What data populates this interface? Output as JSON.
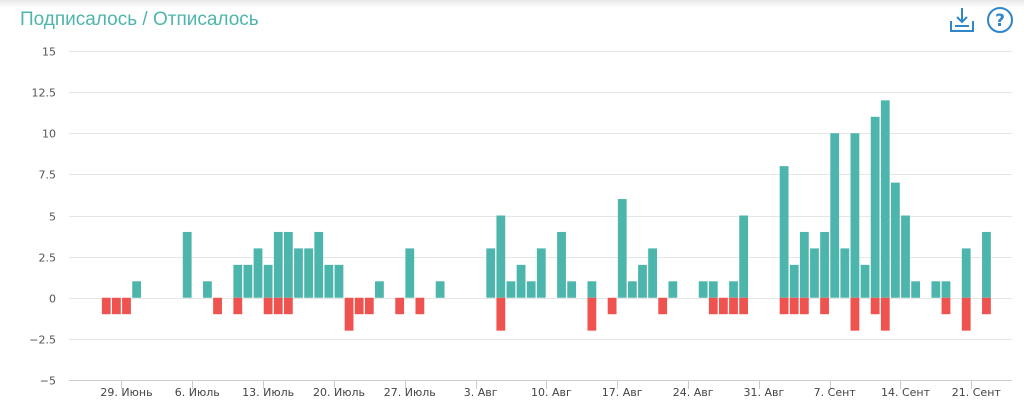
{
  "chart_data": {
    "type": "bar",
    "title": "Подписалось / Отписалось",
    "ylim": [
      -5,
      15
    ],
    "yticks": [
      {
        "v": 15,
        "label": "15"
      },
      {
        "v": 12.5,
        "label": "12.5"
      },
      {
        "v": 10,
        "label": "10"
      },
      {
        "v": 7.5,
        "label": "7.5"
      },
      {
        "v": 5,
        "label": "5"
      },
      {
        "v": 2.5,
        "label": "2.5"
      },
      {
        "v": 0,
        "label": "0"
      },
      {
        "v": -2.5,
        "label": "−2.5"
      },
      {
        "v": -5,
        "label": "−5"
      }
    ],
    "x_range_days": [
      -10,
      83
    ],
    "xticks": [
      {
        "day": 0,
        "label": "29. Июнь"
      },
      {
        "day": 7,
        "label": "6. Июль"
      },
      {
        "day": 14,
        "label": "13. Июль"
      },
      {
        "day": 21,
        "label": "20. Июль"
      },
      {
        "day": 28,
        "label": "27. Июль"
      },
      {
        "day": 35,
        "label": "3. Авг"
      },
      {
        "day": 42,
        "label": "10. Авг"
      },
      {
        "day": 49,
        "label": "17. Авг"
      },
      {
        "day": 56,
        "label": "24. Авг"
      },
      {
        "day": 63,
        "label": "31. Авг"
      },
      {
        "day": 70,
        "label": "7. Сент"
      },
      {
        "day": 77,
        "label": "14. Сент"
      },
      {
        "day": 84,
        "label": "21. Сент"
      }
    ],
    "grid": true,
    "legend": "none",
    "series": [
      {
        "color": "#4db6ac",
        "points": [
          [
            1,
            1
          ],
          [
            6,
            4
          ],
          [
            8,
            1
          ],
          [
            11,
            2
          ],
          [
            12,
            2
          ],
          [
            13,
            3
          ],
          [
            14,
            2
          ],
          [
            15,
            4
          ],
          [
            16,
            4
          ],
          [
            17,
            3
          ],
          [
            18,
            3
          ],
          [
            19,
            4
          ],
          [
            20,
            2
          ],
          [
            21,
            2
          ],
          [
            25,
            1
          ],
          [
            28,
            3
          ],
          [
            31,
            1
          ],
          [
            36,
            3
          ],
          [
            37,
            5
          ],
          [
            38,
            1
          ],
          [
            39,
            2
          ],
          [
            40,
            1
          ],
          [
            41,
            3
          ],
          [
            43,
            4
          ],
          [
            44,
            1
          ],
          [
            46,
            1
          ],
          [
            49,
            6
          ],
          [
            50,
            1
          ],
          [
            51,
            2
          ],
          [
            52,
            3
          ],
          [
            54,
            1
          ],
          [
            57,
            1
          ],
          [
            58,
            1
          ],
          [
            60,
            1
          ],
          [
            61,
            5
          ],
          [
            65,
            8
          ],
          [
            66,
            2
          ],
          [
            67,
            4
          ],
          [
            68,
            3
          ],
          [
            69,
            4
          ],
          [
            70,
            10
          ],
          [
            71,
            3
          ],
          [
            72,
            10
          ],
          [
            73,
            2
          ],
          [
            74,
            11
          ],
          [
            75,
            12
          ],
          [
            76,
            7
          ],
          [
            77,
            5
          ],
          [
            78,
            1
          ],
          [
            80,
            1
          ],
          [
            81,
            1
          ],
          [
            83,
            3
          ],
          [
            85,
            4
          ]
        ]
      },
      {
        "color": "#ef5350",
        "points": [
          [
            -2,
            -1
          ],
          [
            -1,
            -1
          ],
          [
            0,
            -1
          ],
          [
            9,
            -1
          ],
          [
            11,
            -1
          ],
          [
            14,
            -1
          ],
          [
            15,
            -1
          ],
          [
            16,
            -1
          ],
          [
            22,
            -2
          ],
          [
            23,
            -1
          ],
          [
            24,
            -1
          ],
          [
            27,
            -1
          ],
          [
            29,
            -1
          ],
          [
            37,
            -2
          ],
          [
            46,
            -2
          ],
          [
            48,
            -1
          ],
          [
            53,
            -1
          ],
          [
            58,
            -1
          ],
          [
            59,
            -1
          ],
          [
            60,
            -1
          ],
          [
            61,
            -1
          ],
          [
            65,
            -1
          ],
          [
            66,
            -1
          ],
          [
            67,
            -1
          ],
          [
            69,
            -1
          ],
          [
            72,
            -2
          ],
          [
            74,
            -1
          ],
          [
            75,
            -2
          ],
          [
            81,
            -1
          ],
          [
            83,
            -2
          ],
          [
            85,
            -1
          ]
        ]
      }
    ]
  },
  "toolbar": {
    "download_icon": "download-tray-icon",
    "help_icon": "help-circle-icon",
    "help_symbol": "?",
    "icon_color": "#2f86c8"
  }
}
